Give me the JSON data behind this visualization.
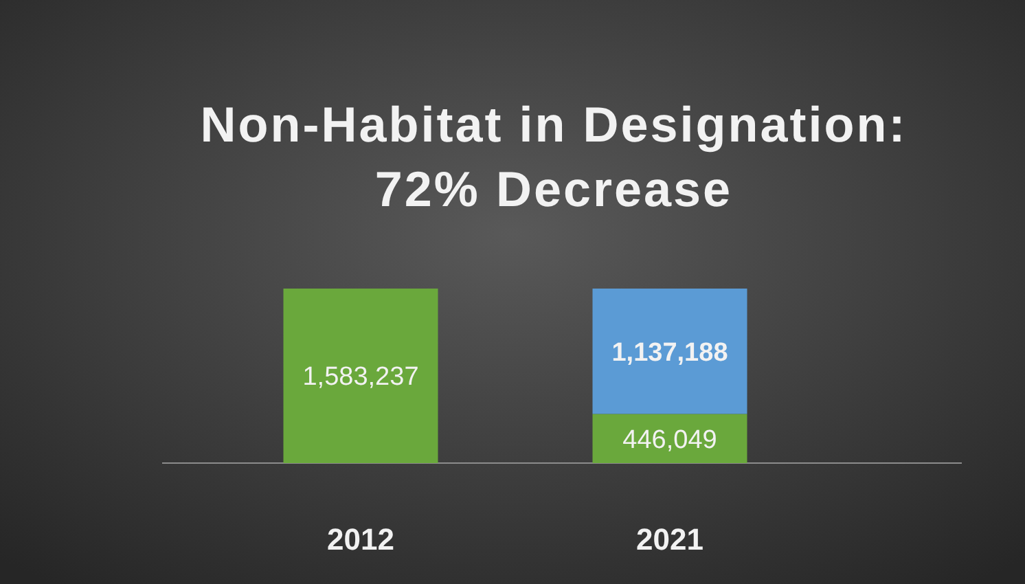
{
  "chart_data": {
    "type": "bar",
    "title": "Non-Habitat in Designation: 72% Decrease",
    "categories": [
      "2012",
      "2021"
    ],
    "stacked": true,
    "tick_labels": "x",
    "series": [
      {
        "color": "#6aa83c",
        "values": [
          1583237,
          446049
        ],
        "value_labels": [
          "1,583,237",
          "446,049"
        ]
      },
      {
        "color": "#5b9bd5",
        "values": [
          null,
          1137188
        ],
        "value_labels": [
          null,
          "1,137,188"
        ]
      }
    ]
  }
}
